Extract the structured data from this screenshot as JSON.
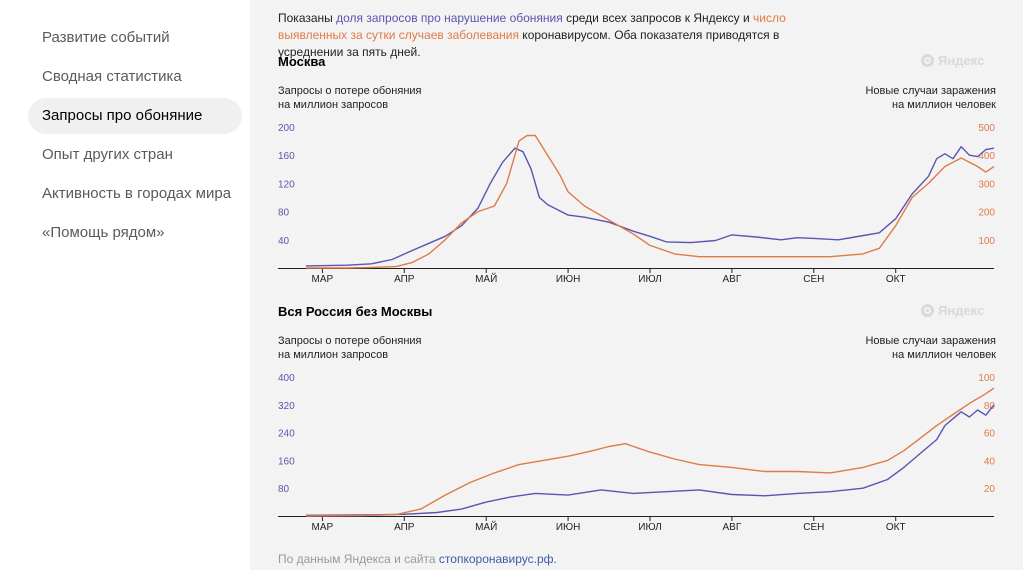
{
  "nav": {
    "items": [
      {
        "label": "Развитие событий"
      },
      {
        "label": "Сводная статистика"
      },
      {
        "label": "Запросы про обоняние"
      },
      {
        "label": "Опыт других стран"
      },
      {
        "label": "Активность в городах мира"
      },
      {
        "label": "«Помощь рядом»"
      }
    ],
    "active_index": 2
  },
  "intro": {
    "part1": "Показаны ",
    "link1": "доля запросов про нарушение обоняния",
    "part2": " среди всех запросов к Яндексу и ",
    "link2": "число выявленных за сутки случаев заболевания",
    "part3": " коронавирусом. Оба показателя приводятся в усреднении за пять дней."
  },
  "colors": {
    "queries": "#5b55b0",
    "cases": "#e07b48"
  },
  "watermark": {
    "text": "Яндекс"
  },
  "source": {
    "text": "По данным Яндекса и сайта ",
    "link": "стопкоронавирус.рф."
  },
  "chart_data": [
    {
      "type": "line",
      "title": "Москва",
      "ylabel_left": [
        "Запросы о потере обоняния",
        "на миллион запросов"
      ],
      "ylabel_right": [
        "Новые случаи заражения",
        "на миллион человек"
      ],
      "x_ticks": [
        "МАР",
        "АПР",
        "МАЙ",
        "ИЮН",
        "ИЮЛ",
        "АВГ",
        "СЕН",
        "ОКТ"
      ],
      "x_range": [
        -0.2,
        8.2
      ],
      "y_left": {
        "ticks": [
          40,
          80,
          120,
          160,
          200
        ],
        "range": [
          0,
          200
        ]
      },
      "y_right": {
        "ticks": [
          100,
          200,
          300,
          400,
          500
        ],
        "range": [
          0,
          500
        ]
      },
      "series": [
        {
          "name": "Запросы о потере обоняния на миллион запросов",
          "axis": "left",
          "x": [
            -0.2,
            0.3,
            0.6,
            0.85,
            1.1,
            1.3,
            1.5,
            1.7,
            1.9,
            2.05,
            2.2,
            2.35,
            2.45,
            2.55,
            2.65,
            2.75,
            3.0,
            3.2,
            3.5,
            3.8,
            4.0,
            4.2,
            4.5,
            4.8,
            5.0,
            5.3,
            5.6,
            5.8,
            6.0,
            6.3,
            6.5,
            6.8,
            7.0,
            7.2,
            7.4,
            7.5,
            7.6,
            7.7,
            7.8,
            7.9,
            8.0,
            8.1,
            8.2
          ],
          "values": [
            3,
            4,
            6,
            12,
            25,
            35,
            45,
            60,
            85,
            120,
            150,
            170,
            165,
            140,
            100,
            90,
            75,
            72,
            65,
            52,
            45,
            37,
            36,
            39,
            47,
            44,
            40,
            43,
            42,
            40,
            44,
            50,
            70,
            105,
            130,
            155,
            162,
            155,
            172,
            160,
            158,
            168,
            170
          ]
        },
        {
          "name": "Новые случаи заражения на миллион человек",
          "axis": "right",
          "x": [
            -0.2,
            0.3,
            0.6,
            0.9,
            1.1,
            1.3,
            1.5,
            1.7,
            1.9,
            2.1,
            2.25,
            2.4,
            2.5,
            2.6,
            2.75,
            2.9,
            3.0,
            3.2,
            3.5,
            3.8,
            4.0,
            4.3,
            4.6,
            5.0,
            5.3,
            5.6,
            6.0,
            6.2,
            6.4,
            6.6,
            6.8,
            7.0,
            7.2,
            7.4,
            7.6,
            7.8,
            8.0,
            8.1,
            8.2
          ],
          "values": [
            0,
            0,
            2,
            5,
            20,
            50,
            100,
            160,
            200,
            220,
            300,
            450,
            470,
            470,
            400,
            330,
            270,
            220,
            170,
            120,
            80,
            50,
            40,
            40,
            40,
            40,
            40,
            40,
            45,
            50,
            70,
            150,
            250,
            300,
            360,
            390,
            360,
            340,
            360
          ]
        }
      ]
    },
    {
      "type": "line",
      "title": "Вся Россия без Москвы",
      "ylabel_left": [
        "Запросы о потере обоняния",
        "на миллион запросов"
      ],
      "ylabel_right": [
        "Новые случаи заражения",
        "на миллион человек"
      ],
      "x_ticks": [
        "МАР",
        "АПР",
        "МАЙ",
        "ИЮН",
        "ИЮЛ",
        "АВГ",
        "СЕН",
        "ОКТ"
      ],
      "x_range": [
        -0.2,
        8.2
      ],
      "y_left": {
        "ticks": [
          80,
          160,
          240,
          320,
          400
        ],
        "range": [
          0,
          400
        ]
      },
      "y_right": {
        "ticks": [
          20,
          40,
          60,
          80,
          100
        ],
        "range": [
          0,
          100
        ]
      },
      "series": [
        {
          "name": "Запросы о потере обоняния на миллион запросов",
          "axis": "left",
          "x": [
            -0.2,
            0.5,
            1.0,
            1.4,
            1.7,
            2.0,
            2.3,
            2.6,
            3.0,
            3.4,
            3.8,
            4.2,
            4.6,
            5.0,
            5.4,
            5.8,
            6.2,
            6.6,
            6.9,
            7.1,
            7.3,
            7.5,
            7.6,
            7.7,
            7.8,
            7.9,
            8.0,
            8.1,
            8.2
          ],
          "values": [
            2,
            3,
            5,
            10,
            20,
            40,
            55,
            65,
            60,
            75,
            65,
            70,
            75,
            62,
            58,
            65,
            70,
            80,
            105,
            140,
            180,
            220,
            260,
            280,
            300,
            285,
            305,
            290,
            320
          ]
        },
        {
          "name": "Новые случаи заражения на миллион человек",
          "axis": "right",
          "x": [
            -0.2,
            0.5,
            0.9,
            1.2,
            1.5,
            1.8,
            2.1,
            2.4,
            2.7,
            3.0,
            3.3,
            3.5,
            3.7,
            4.0,
            4.3,
            4.6,
            5.0,
            5.4,
            5.8,
            6.2,
            6.6,
            6.9,
            7.1,
            7.3,
            7.5,
            7.7,
            7.9,
            8.1,
            8.2
          ],
          "values": [
            0,
            0.3,
            1,
            5,
            15,
            24,
            31,
            37,
            40,
            43,
            47,
            50,
            52,
            46,
            41,
            37,
            35,
            32,
            32,
            31,
            35,
            40,
            47,
            56,
            65,
            73,
            81,
            88,
            92
          ]
        }
      ]
    }
  ]
}
